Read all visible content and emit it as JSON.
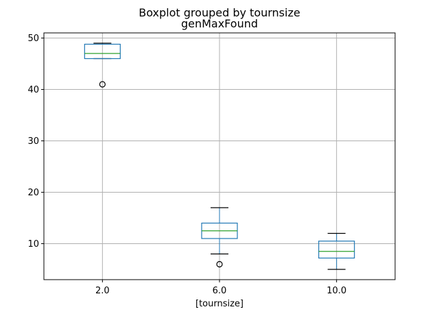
{
  "chart_data": {
    "type": "box",
    "suptitle": "Boxplot grouped by tournsize",
    "title": "genMaxFound",
    "xlabel": "[tournsize]",
    "ylabel": "",
    "ylim": [
      3,
      51
    ],
    "yticks": [
      10,
      20,
      30,
      40,
      50
    ],
    "grid": true,
    "categories": [
      "2.0",
      "6.0",
      "10.0"
    ],
    "boxes": [
      {
        "name": "2.0",
        "whisker_low": 46,
        "q1": 46,
        "median": 47,
        "q3": 48.8,
        "whisker_high": 49,
        "outliers": [
          41
        ]
      },
      {
        "name": "6.0",
        "whisker_low": 8,
        "q1": 11,
        "median": 12.5,
        "q3": 14,
        "whisker_high": 17,
        "outliers": [
          6
        ]
      },
      {
        "name": "10.0",
        "whisker_low": 5,
        "q1": 7.2,
        "median": 8.5,
        "q3": 10.5,
        "whisker_high": 12,
        "outliers": []
      }
    ],
    "colors": {
      "box": "#1f77b4",
      "median": "#2ca02c",
      "whisker": "#1f77b4",
      "cap": "#000000",
      "outlier": "#000000",
      "grid": "#b0b0b0"
    }
  }
}
